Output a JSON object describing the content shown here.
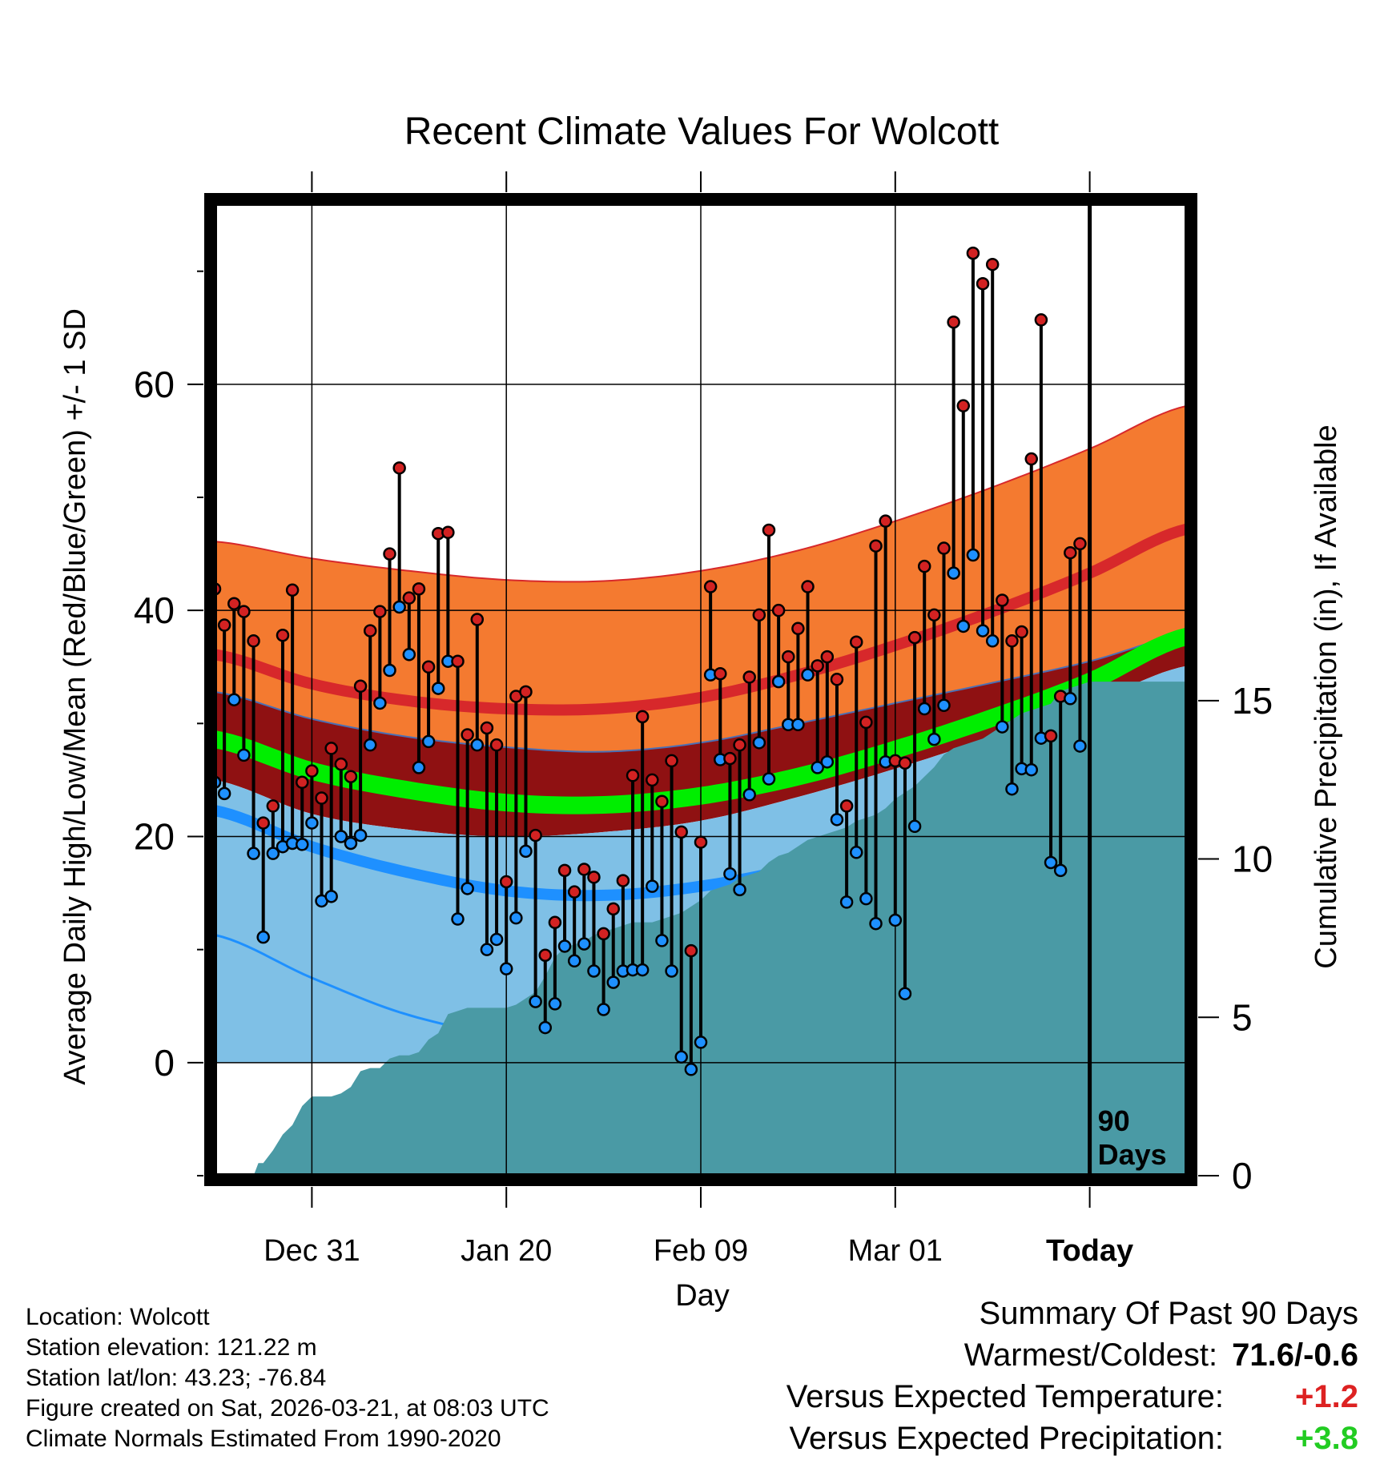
{
  "colors": {
    "record_band": "#f47a30",
    "high_line": "#d7282b",
    "high_sd": "#8f1112",
    "mean_line": "#00ee00",
    "low_sd": "#7fc0e6",
    "low_line": "#1e90ff",
    "precip": "#4a9aa5",
    "high_dot": "#d22222",
    "low_dot": "#1e90ff",
    "warmer": "#dd2222",
    "wetter": "#22cc22"
  },
  "chart_data": {
    "type": "line",
    "title": "Recent Climate Values For Wolcott",
    "xlabel": "Day",
    "ylabel": "Average Daily High/Low/Mean (Red/Blue/Green) +/- 1 SD",
    "y2label": "Cumulative Precipitation (in), If Available",
    "ylim": [
      -10,
      76
    ],
    "y2lim": [
      0,
      30.7
    ],
    "y_ticks": [
      0,
      20,
      40,
      60
    ],
    "y2_ticks": [
      0,
      5,
      10,
      15
    ],
    "x_range": [
      0,
      100
    ],
    "x_tick_positions": [
      10,
      30,
      50,
      70,
      90
    ],
    "x_tick_labels": [
      "Dec 31",
      "Jan 20",
      "Feb 09",
      "Mar 01",
      "Today"
    ],
    "today_index": 90,
    "today_label_line1": "90",
    "today_label_line2": "Days",
    "normals": {
      "x": [
        0,
        10,
        20,
        30,
        40,
        50,
        60,
        70,
        80,
        90,
        100
      ],
      "upper_band": [
        46.1,
        44.6,
        43.5,
        42.7,
        42.6,
        43.5,
        45.3,
        47.9,
        50.9,
        54.3,
        58.1
      ],
      "high_mean": [
        36.1,
        33.5,
        32.0,
        31.3,
        31.3,
        32.3,
        34.3,
        36.9,
        39.9,
        43.3,
        47.2
      ],
      "high_minus_sd": [
        32.8,
        30.4,
        28.8,
        27.9,
        27.5,
        28.3,
        30.0,
        31.8,
        33.6,
        35.5,
        37.9
      ],
      "mean": [
        28.6,
        25.8,
        24.1,
        23.0,
        22.8,
        23.6,
        25.3,
        27.7,
        30.5,
        33.7,
        37.7
      ],
      "mean_minus_band": [
        25.0,
        22.0,
        20.6,
        20.0,
        20.4,
        21.4,
        23.5,
        26.0,
        28.8,
        31.8,
        35.1
      ],
      "low_mean": [
        22.3,
        19.1,
        16.8,
        15.2,
        14.8,
        15.6,
        17.3,
        19.9,
        22.6,
        26.0,
        29.4
      ],
      "lower_band": [
        11.3,
        7.5,
        4.2,
        2.5,
        2.6,
        3.8,
        5.7,
        8.8,
        12.3,
        16.4,
        20.8
      ]
    },
    "daily_highs": [
      41.9,
      38.7,
      40.6,
      39.9,
      37.3,
      21.2,
      22.7,
      37.8,
      41.8,
      24.8,
      25.8,
      23.4,
      27.8,
      26.4,
      25.3,
      33.3,
      38.2,
      39.9,
      45.0,
      52.6,
      41.1,
      41.9,
      35.0,
      46.8,
      46.9,
      35.5,
      29.0,
      39.2,
      29.6,
      28.1,
      16.0,
      32.4,
      32.8,
      20.1,
      9.5,
      12.4,
      17.0,
      15.1,
      17.1,
      16.4,
      11.4,
      13.6,
      16.1,
      25.4,
      30.6,
      25.0,
      23.1,
      26.7,
      20.4,
      9.9,
      19.5,
      42.1,
      34.4,
      26.9,
      28.1,
      34.1,
      39.6,
      47.1,
      40.0,
      35.9,
      38.4,
      42.1,
      35.1,
      35.9,
      33.9,
      22.7,
      37.2,
      30.1,
      45.7,
      47.9,
      26.7,
      26.5,
      37.6,
      43.9,
      39.6,
      45.5,
      65.5,
      58.1,
      71.6,
      68.9,
      70.6,
      40.9,
      37.3,
      38.1,
      53.4,
      65.7,
      28.9,
      32.4,
      45.1,
      45.9
    ],
    "daily_lows": [
      24.8,
      23.8,
      32.1,
      27.2,
      18.5,
      11.1,
      18.5,
      19.1,
      19.4,
      19.3,
      21.2,
      14.3,
      14.7,
      20.0,
      19.4,
      20.1,
      28.1,
      31.8,
      34.7,
      40.3,
      36.1,
      26.1,
      28.4,
      33.1,
      35.5,
      12.7,
      15.4,
      28.1,
      10.0,
      10.9,
      8.3,
      12.8,
      18.7,
      5.4,
      3.1,
      5.2,
      10.3,
      9.0,
      10.5,
      8.1,
      4.7,
      7.1,
      8.1,
      8.2,
      8.2,
      15.6,
      10.8,
      8.1,
      0.5,
      -0.6,
      1.8,
      34.3,
      26.8,
      16.7,
      15.3,
      23.7,
      28.3,
      25.1,
      33.7,
      29.9,
      29.9,
      34.3,
      26.1,
      26.6,
      21.5,
      14.2,
      18.6,
      14.5,
      12.3,
      26.6,
      12.6,
      6.1,
      20.9,
      31.3,
      28.6,
      31.6,
      43.3,
      38.6,
      44.9,
      38.2,
      37.3,
      29.7,
      24.2,
      26.0,
      25.9,
      28.7,
      17.7,
      17.0,
      32.2,
      28.0
    ],
    "precip_cumulative": {
      "x": [
        4,
        4.5,
        5,
        6,
        7,
        8,
        9,
        10,
        11,
        12,
        13,
        14,
        15,
        16,
        17,
        18,
        19,
        20,
        21,
        22,
        23,
        24,
        25,
        26,
        27,
        28,
        29,
        30,
        31,
        32,
        33,
        34,
        35,
        36,
        37,
        38,
        39,
        40,
        41,
        42,
        43,
        44,
        45,
        46,
        47,
        48,
        49,
        50,
        51,
        52,
        53,
        54,
        55,
        56,
        57,
        58,
        59,
        60,
        61,
        62,
        63,
        64,
        65,
        66,
        67,
        68,
        69,
        70,
        71,
        72,
        73,
        74,
        75,
        76,
        77,
        78,
        79,
        80,
        81,
        82,
        83,
        84,
        85,
        86,
        87,
        88,
        89,
        90,
        91,
        92,
        93,
        94,
        95,
        96,
        97,
        98,
        99,
        100
      ],
      "values": [
        0,
        0.4,
        0.4,
        0.8,
        1.3,
        1.6,
        2.2,
        2.5,
        2.5,
        2.5,
        2.6,
        2.8,
        3.3,
        3.4,
        3.4,
        3.7,
        3.8,
        3.8,
        3.9,
        4.3,
        4.5,
        5.1,
        5.2,
        5.3,
        5.3,
        5.3,
        5.3,
        5.3,
        5.4,
        5.6,
        5.8,
        6.3,
        6.9,
        7.2,
        7.3,
        7.4,
        7.6,
        7.7,
        7.8,
        7.9,
        8.0,
        8.0,
        8.0,
        8.1,
        8.2,
        8.3,
        8.5,
        8.7,
        9.0,
        9.1,
        9.2,
        9.4,
        9.5,
        9.6,
        9.9,
        10.1,
        10.2,
        10.4,
        10.6,
        10.7,
        10.8,
        10.9,
        11.0,
        11.2,
        11.3,
        11.4,
        11.6,
        11.9,
        12.1,
        12.3,
        12.6,
        12.9,
        13.3,
        13.5,
        13.6,
        13.7,
        13.8,
        14.0,
        14.2,
        14.4,
        14.6,
        14.7,
        14.8,
        14.9,
        15.3,
        15.4,
        15.5,
        15.6,
        15.6,
        15.6,
        15.6,
        15.6,
        15.6,
        15.6,
        15.6,
        15.6,
        15.6,
        15.6
      ]
    }
  },
  "footer": {
    "location": "Location: Wolcott",
    "elevation": "Station elevation: 121.22 m",
    "latlon": "Station lat/lon: 43.23; -76.84",
    "created": "Figure created on Sat, 2026-03-21, at 08:03 UTC",
    "normals": "Climate Normals Estimated From 1990-2020"
  },
  "summary": {
    "heading": "Summary Of Past 90 Days",
    "warmest_coldest_label": "Warmest/Coldest:",
    "warmest_coldest_value": "71.6/-0.6",
    "temp_label": "Versus Expected Temperature:",
    "temp_value": "+1.2",
    "precip_label": "Versus Expected Precipitation:",
    "precip_value": "+3.8"
  }
}
